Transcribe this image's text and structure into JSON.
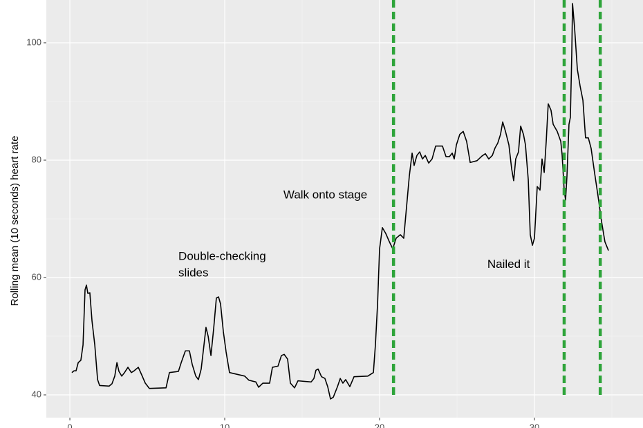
{
  "chart_data": {
    "type": "line",
    "y_axis_label": "Rolling mean (10 seconds) heart rate",
    "xlim": [
      -1.52,
      37.01
    ],
    "ylim": [
      36.12,
      107.29
    ],
    "xticks": [
      0,
      10,
      20,
      30
    ],
    "yticks": [
      40,
      60,
      80,
      100
    ],
    "x_minor_grid": [
      5,
      15,
      25,
      35
    ],
    "y_minor_grid": [
      50,
      70,
      90
    ],
    "grid": true,
    "background": "#ebebeb",
    "series": [
      {
        "color": "#000000",
        "x": [
          0.13,
          0.27,
          0.4,
          0.54,
          0.71,
          0.85,
          0.98,
          1.07,
          1.16,
          1.29,
          1.43,
          1.61,
          1.79,
          1.92,
          2.54,
          2.72,
          2.9,
          3.04,
          3.17,
          3.35,
          3.53,
          3.75,
          3.97,
          4.15,
          4.42,
          4.64,
          4.87,
          5.13,
          6.21,
          6.43,
          7.01,
          7.19,
          7.46,
          7.72,
          7.9,
          8.13,
          8.3,
          8.48,
          8.66,
          8.79,
          8.93,
          9.11,
          9.29,
          9.46,
          9.6,
          9.73,
          9.91,
          10.09,
          10.31,
          11.29,
          11.56,
          12.01,
          12.19,
          12.46,
          12.9,
          13.08,
          13.44,
          13.66,
          13.84,
          14.06,
          14.24,
          14.51,
          14.73,
          15.58,
          15.76,
          15.89,
          16.03,
          16.25,
          16.47,
          16.65,
          16.83,
          17.01,
          17.28,
          17.46,
          17.63,
          17.81,
          18.08,
          18.35,
          19.24,
          19.6,
          19.73,
          19.87,
          20.0,
          20.18,
          20.4,
          20.63,
          20.85,
          21.07,
          21.34,
          21.56,
          21.74,
          21.92,
          22.1,
          22.23,
          22.41,
          22.59,
          22.77,
          22.95,
          23.17,
          23.39,
          23.62,
          24.06,
          24.29,
          24.51,
          24.69,
          24.82,
          24.96,
          25.18,
          25.4,
          25.62,
          25.85,
          26.29,
          26.61,
          26.83,
          27.05,
          27.28,
          27.46,
          27.63,
          27.81,
          27.95,
          28.13,
          28.35,
          28.53,
          28.66,
          28.79,
          28.97,
          29.11,
          29.29,
          29.42,
          29.6,
          29.73,
          29.87,
          30.0,
          30.18,
          30.36,
          30.49,
          30.63,
          30.76,
          30.89,
          31.07,
          31.21,
          31.47,
          31.7,
          31.79,
          31.92,
          32.01,
          32.1,
          32.23,
          32.32,
          32.41,
          32.46,
          32.59,
          32.77,
          32.95,
          33.13,
          33.3,
          33.48,
          33.66,
          33.88,
          34.11,
          34.33,
          34.55,
          34.78
        ],
        "values": [
          43.8,
          44.1,
          44.1,
          45.5,
          45.9,
          48.5,
          57.9,
          58.7,
          57.3,
          57.4,
          52.6,
          48.5,
          42.6,
          41.6,
          41.5,
          41.9,
          43.2,
          45.5,
          44.0,
          43.2,
          43.8,
          44.7,
          43.8,
          44.1,
          44.7,
          43.4,
          42.0,
          41.1,
          41.2,
          43.8,
          44.0,
          45.5,
          47.5,
          47.5,
          45.2,
          43.2,
          42.6,
          44.4,
          48.5,
          51.5,
          50.0,
          46.7,
          51.4,
          56.5,
          56.7,
          55.5,
          50.8,
          47.3,
          43.8,
          43.2,
          42.5,
          42.2,
          41.3,
          42.0,
          42.0,
          44.7,
          44.9,
          46.7,
          46.9,
          46.1,
          42.0,
          41.2,
          42.4,
          42.2,
          42.8,
          44.2,
          44.4,
          43.1,
          42.8,
          41.4,
          39.3,
          39.6,
          41.4,
          42.8,
          42.0,
          42.6,
          41.4,
          43.1,
          43.2,
          43.8,
          48.5,
          55.5,
          64.9,
          68.5,
          67.5,
          66.1,
          64.9,
          66.7,
          67.3,
          66.7,
          72.0,
          77.3,
          81.2,
          79.1,
          80.8,
          81.4,
          80.2,
          80.8,
          79.5,
          80.2,
          82.4,
          82.4,
          80.6,
          80.6,
          81.2,
          80.2,
          82.6,
          84.4,
          84.9,
          83.2,
          79.6,
          79.9,
          80.7,
          81.1,
          80.2,
          80.8,
          82.1,
          82.9,
          84.4,
          86.5,
          84.9,
          82.6,
          78.5,
          76.5,
          80.2,
          81.4,
          85.8,
          84.4,
          82.6,
          76.7,
          67.3,
          65.5,
          66.7,
          75.5,
          74.9,
          80.2,
          77.9,
          83.2,
          89.6,
          88.5,
          86.1,
          84.9,
          83.2,
          80.8,
          74.9,
          73.2,
          77.3,
          86.1,
          87.3,
          97.9,
          106.7,
          102.6,
          95.5,
          92.6,
          90.2,
          83.8,
          83.8,
          82.0,
          77.9,
          73.8,
          69.6,
          66.1,
          64.6
        ]
      }
    ],
    "vlines": {
      "color": "#2ea43a",
      "ymin": 40,
      "x": [
        20.9,
        31.92,
        34.25
      ]
    },
    "annotations": [
      {
        "text": [
          "Walk onto stage"
        ],
        "x": 13.79,
        "y": 74.0
      },
      {
        "text": [
          "Double-checking",
          "slides"
        ],
        "x": 7.01,
        "y": 63.5
      },
      {
        "text": [
          "Nailed it"
        ],
        "x": 26.96,
        "y": 62.2
      }
    ]
  }
}
